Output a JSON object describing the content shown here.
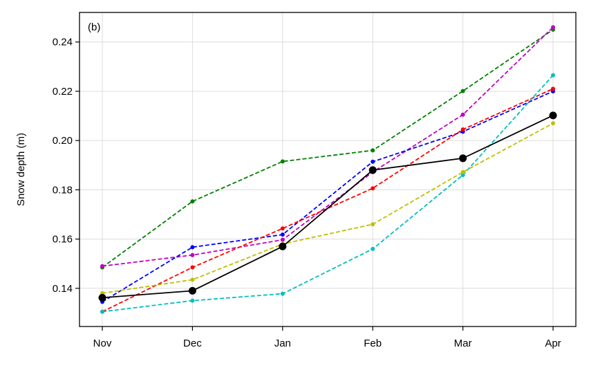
{
  "chart_data": {
    "type": "line",
    "panel_label": "(b)",
    "ylabel": "Snow depth (m)",
    "xlabel": "",
    "categories": [
      "Nov",
      "Dec",
      "Jan",
      "Feb",
      "Mar",
      "Apr"
    ],
    "ylim": [
      0.1245,
      0.252
    ],
    "yticks": [
      0.14,
      0.16,
      0.18,
      0.2,
      0.22,
      0.24
    ],
    "ytick_labels": [
      "0.14",
      "0.16",
      "0.18",
      "0.20",
      "0.22",
      "0.24"
    ],
    "grid": true,
    "series": [
      {
        "color": "#008000",
        "style": "dashed",
        "values": [
          0.1485,
          0.1753,
          0.1915,
          0.196,
          0.2201,
          0.245
        ]
      },
      {
        "color": "#c000c0",
        "style": "dashed",
        "values": [
          0.149,
          0.1535,
          0.1597,
          0.1872,
          0.2105,
          0.246
        ]
      },
      {
        "color": "#0000ff",
        "style": "dashed",
        "values": [
          0.1345,
          0.1567,
          0.1618,
          0.1914,
          0.2036,
          0.22
        ]
      },
      {
        "color": "#ff0000",
        "style": "dashed",
        "values": [
          0.1305,
          0.1485,
          0.1643,
          0.1806,
          0.2045,
          0.221
        ]
      },
      {
        "color": "#00bfbf",
        "style": "dashed",
        "values": [
          0.1305,
          0.135,
          0.1378,
          0.156,
          0.186,
          0.2265
        ]
      },
      {
        "color": "#bfbf00",
        "style": "dashed",
        "values": [
          0.138,
          0.1435,
          0.158,
          0.166,
          0.1872,
          0.207
        ]
      },
      {
        "color": "#000000",
        "style": "solid",
        "values": [
          0.1362,
          0.139,
          0.157,
          0.188,
          0.1928,
          0.2102
        ]
      }
    ]
  }
}
